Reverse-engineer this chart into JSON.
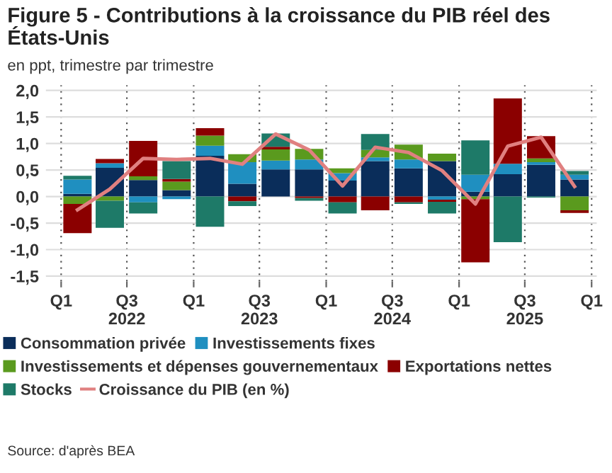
{
  "chart_data": {
    "type": "bar",
    "stacked": true,
    "title": "Figure 5 - Contributions à la croissance du PIB réel des États-Unis",
    "subtitle": "en ppt, trimestre par trimestre",
    "x": [
      "2022-02-15",
      "2022-05-15",
      "2022-08-15",
      "2022-11-15",
      "2023-02-15",
      "2023-05-15",
      "2023-08-15",
      "2023-11-15",
      "2024-02-15",
      "2024-05-15",
      "2024-08-15",
      "2024-11-15",
      "2025-02-15",
      "2025-05-15",
      "2025-08-15",
      "2025-11-15"
    ],
    "series": [
      {
        "name": "Consommation privée",
        "color": "#0a2d5a",
        "values": [
          0.05,
          0.54,
          0.31,
          0.12,
          0.77,
          0.24,
          0.51,
          0.51,
          0.3,
          0.67,
          0.53,
          0.67,
          0.09,
          0.42,
          0.6,
          0.32
        ]
      },
      {
        "name": "Investissements fixes",
        "color": "#1f8fc0",
        "values": [
          0.27,
          0.09,
          -0.11,
          -0.05,
          0.19,
          0.41,
          0.17,
          0.19,
          0.14,
          0.07,
          0.17,
          -0.06,
          0.32,
          0.2,
          0.05,
          0.09
        ]
      },
      {
        "name": "Investissements et dépenses gouvernementaux",
        "color": "#5a9a1e",
        "values": [
          -0.14,
          -0.08,
          0.07,
          0.16,
          0.19,
          0.15,
          0.21,
          0.2,
          0.09,
          0.14,
          0.28,
          0.14,
          -0.05,
          0.0,
          0.07,
          -0.26
        ]
      },
      {
        "name": "Exportations nettes",
        "color": "#8b0000",
        "values": [
          -0.55,
          0.08,
          0.67,
          0.05,
          0.14,
          -0.09,
          0.05,
          -0.03,
          -0.11,
          -0.26,
          -0.11,
          -0.04,
          -1.19,
          1.23,
          0.42,
          -0.05
        ]
      },
      {
        "name": "Stocks",
        "color": "#1e7a68",
        "values": [
          0.07,
          -0.51,
          -0.21,
          0.34,
          -0.57,
          -0.09,
          0.25,
          -0.05,
          -0.21,
          0.3,
          -0.03,
          -0.22,
          0.65,
          -0.86,
          -0.02,
          0.07
        ]
      },
      {
        "name": "Croissance du PIB (en %)",
        "type": "line",
        "color": "#e08080",
        "values": [
          -0.25,
          0.14,
          0.72,
          0.7,
          0.72,
          0.61,
          1.18,
          0.88,
          0.2,
          0.93,
          0.83,
          0.49,
          -0.14,
          0.95,
          1.12,
          0.19
        ]
      }
    ],
    "xlim": [
      "2021-11-20",
      "2026-01-15"
    ],
    "xticks": [
      {
        "value": "2022-01-01",
        "label": "Q1"
      },
      {
        "value": "2022-07-01",
        "label": "Q3\n2022"
      },
      {
        "value": "2023-01-01",
        "label": "Q1"
      },
      {
        "value": "2023-07-01",
        "label": "Q3\n2023"
      },
      {
        "value": "2024-01-01",
        "label": "Q1"
      },
      {
        "value": "2024-07-01",
        "label": "Q3\n2024"
      },
      {
        "value": "2025-01-01",
        "label": "Q1"
      },
      {
        "value": "2025-07-01",
        "label": "Q3\n2025"
      },
      {
        "value": "2026-01-01",
        "label": "Q1"
      }
    ],
    "ylim": [
      -1.6,
      2.1
    ],
    "yticks": [
      {
        "value": -1.5,
        "label": "-1,5"
      },
      {
        "value": -1,
        "label": "-1,0"
      },
      {
        "value": -0.5,
        "label": "-0,5"
      },
      {
        "value": 0,
        "label": "0,0"
      },
      {
        "value": 0.5,
        "label": "0,5"
      },
      {
        "value": 1,
        "label": "1,0"
      },
      {
        "value": 1.5,
        "label": "1,5"
      },
      {
        "value": 2,
        "label": "2,0"
      }
    ],
    "grid": true,
    "legend": "bottom",
    "annotations": [
      "Source: d'après BEA"
    ]
  }
}
